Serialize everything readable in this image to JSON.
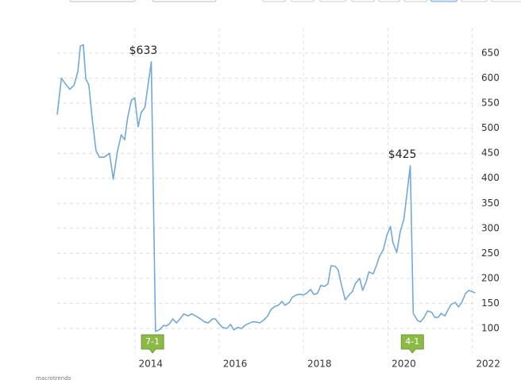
{
  "chart_data": {
    "type": "line",
    "x": [
      2012.16,
      2012.26,
      2012.37,
      2012.46,
      2012.56,
      2012.65,
      2012.71,
      2012.78,
      2012.84,
      2012.91,
      2012.99,
      2013.08,
      2013.16,
      2013.27,
      2013.4,
      2013.49,
      2013.59,
      2013.68,
      2013.76,
      2013.83,
      2013.92,
      2014.0,
      2014.08,
      2014.15,
      2014.24,
      2014.32,
      2014.39,
      2014.49,
      2014.6,
      2014.68,
      2014.75,
      2014.83,
      2014.9,
      2014.99,
      2015.07,
      2015.16,
      2015.26,
      2015.35,
      2015.44,
      2015.56,
      2015.65,
      2015.74,
      2015.84,
      2015.91,
      2015.99,
      2016.08,
      2016.18,
      2016.27,
      2016.35,
      2016.44,
      2016.53,
      2016.61,
      2016.7,
      2016.78,
      2016.87,
      2016.96,
      2017.06,
      2017.15,
      2017.23,
      2017.32,
      2017.4,
      2017.49,
      2017.56,
      2017.66,
      2017.73,
      2017.83,
      2017.9,
      2018.0,
      2018.07,
      2018.17,
      2018.24,
      2018.33,
      2018.41,
      2018.5,
      2018.58,
      2018.65,
      2018.75,
      2018.82,
      2018.9,
      2018.99,
      2019.08,
      2019.16,
      2019.23,
      2019.33,
      2019.4,
      2019.48,
      2019.55,
      2019.65,
      2019.72,
      2019.8,
      2019.89,
      2019.97,
      2020.06,
      2020.12,
      2020.21,
      2020.29,
      2020.38,
      2020.45,
      2020.53,
      2020.6,
      2020.7,
      2020.77,
      2020.85,
      2020.94,
      2021.04,
      2021.11,
      2021.19,
      2021.26,
      2021.35,
      2021.43,
      2021.5,
      2021.6,
      2021.67,
      2021.75,
      2021.84,
      2021.92,
      2022.01,
      2022.07
    ],
    "series": [
      {
        "color": "#72a9d6",
        "values": [
          527,
          600,
          587,
          578,
          586,
          613,
          664,
          667,
          598,
          587,
          519,
          455,
          442,
          442,
          450,
          398,
          455,
          487,
          477,
          521,
          556,
          561,
          503,
          531,
          542,
          590,
          633,
          94,
          98,
          106,
          105,
          110,
          119,
          111,
          119,
          129,
          125,
          129,
          125,
          119,
          113,
          111,
          119,
          119,
          110,
          102,
          100,
          108,
          97,
          102,
          100,
          106,
          110,
          113,
          113,
          111,
          117,
          125,
          138,
          144,
          146,
          154,
          146,
          152,
          162,
          167,
          168,
          167,
          170,
          178,
          168,
          170,
          186,
          184,
          189,
          225,
          224,
          217,
          186,
          157,
          167,
          174,
          190,
          200,
          176,
          192,
          213,
          209,
          224,
          244,
          257,
          285,
          304,
          271,
          252,
          293,
          319,
          369,
          425,
          130,
          116,
          113,
          121,
          135,
          132,
          122,
          122,
          130,
          125,
          138,
          148,
          152,
          143,
          152,
          170,
          176,
          173,
          171
        ]
      }
    ],
    "xlim": [
      2012.16,
      2022.1
    ],
    "xticks": [
      2014,
      2016,
      2018,
      2020,
      2022
    ],
    "ylim": [
      50,
      700
    ],
    "yticks": [
      100,
      150,
      200,
      250,
      300,
      350,
      400,
      450,
      500,
      550,
      600,
      650
    ],
    "grid": true,
    "annotations": [
      {
        "x": 2014.39,
        "y": 633,
        "text": "$633"
      },
      {
        "x": 2020.53,
        "y": 425,
        "text": "$425"
      }
    ],
    "splits": [
      {
        "x": 2014.42,
        "text": "7-1"
      },
      {
        "x": 2020.58,
        "text": "4-1"
      }
    ],
    "source": "macrotrends"
  }
}
